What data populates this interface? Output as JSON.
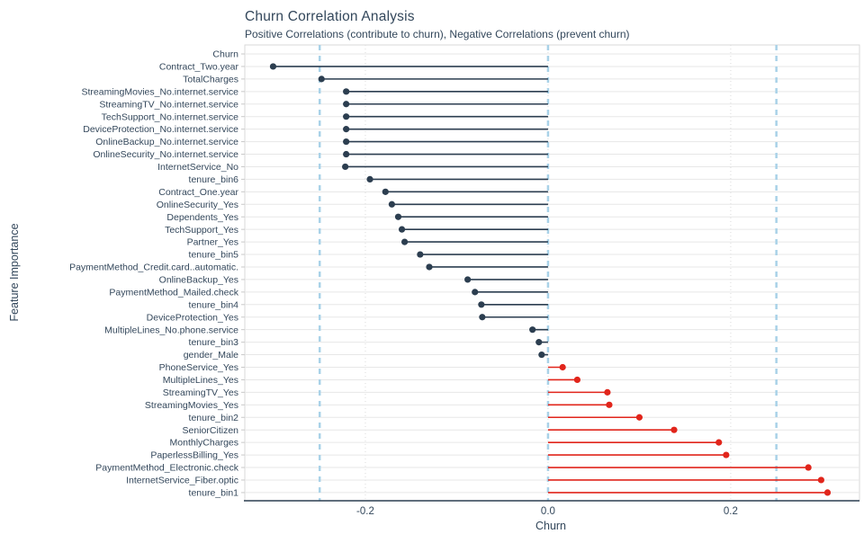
{
  "title": "Churn Correlation Analysis",
  "subtitle": "Positive Correlations (contribute to churn), Negative Correlations (prevent churn)",
  "chart_data": {
    "type": "bar",
    "subtype": "horizontal-lollipop",
    "title": "Churn Correlation Analysis",
    "subtitle": "Positive Correlations (contribute to churn), Negative Correlations (prevent churn)",
    "xlabel": "Churn",
    "ylabel": "Feature Importance",
    "xlim": [
      -0.332,
      0.341
    ],
    "x_ticks": [
      {
        "value": -0.2,
        "label": "-0.2"
      },
      {
        "value": 0.0,
        "label": "0.0"
      },
      {
        "value": 0.2,
        "label": "0.2"
      }
    ],
    "threshold_lines": [
      -0.25,
      0.0,
      0.25
    ],
    "grid": true,
    "legend": "none",
    "colors": {
      "negative": "#2c3e50",
      "positive": "#e1251b",
      "threshold_dash": "#a9d2e8",
      "axis_text": "#33475b",
      "gridline": "#e7e7e7",
      "panel_border": "#d9d9d9"
    },
    "features": [
      {
        "label": "Churn",
        "value": null
      },
      {
        "label": "Contract_Two.year",
        "value": -0.301
      },
      {
        "label": "TotalCharges",
        "value": -0.248
      },
      {
        "label": "StreamingMovies_No.internet.service",
        "value": -0.221
      },
      {
        "label": "StreamingTV_No.internet.service",
        "value": -0.221
      },
      {
        "label": "TechSupport_No.internet.service",
        "value": -0.221
      },
      {
        "label": "DeviceProtection_No.internet.service",
        "value": -0.221
      },
      {
        "label": "OnlineBackup_No.internet.service",
        "value": -0.221
      },
      {
        "label": "OnlineSecurity_No.internet.service",
        "value": -0.221
      },
      {
        "label": "InternetService_No",
        "value": -0.222
      },
      {
        "label": "tenure_bin6",
        "value": -0.195
      },
      {
        "label": "Contract_One.year",
        "value": -0.178
      },
      {
        "label": "OnlineSecurity_Yes",
        "value": -0.171
      },
      {
        "label": "Dependents_Yes",
        "value": -0.164
      },
      {
        "label": "TechSupport_Yes",
        "value": -0.16
      },
      {
        "label": "Partner_Yes",
        "value": -0.157
      },
      {
        "label": "tenure_bin5",
        "value": -0.14
      },
      {
        "label": "PaymentMethod_Credit.card..automatic.",
        "value": -0.13
      },
      {
        "label": "OnlineBackup_Yes",
        "value": -0.088
      },
      {
        "label": "PaymentMethod_Mailed.check",
        "value": -0.08
      },
      {
        "label": "tenure_bin4",
        "value": -0.073
      },
      {
        "label": "DeviceProtection_Yes",
        "value": -0.072
      },
      {
        "label": "MultipleLines_No.phone.service",
        "value": -0.017
      },
      {
        "label": "tenure_bin3",
        "value": -0.01
      },
      {
        "label": "gender_Male",
        "value": -0.007
      },
      {
        "label": "PhoneService_Yes",
        "value": 0.016
      },
      {
        "label": "MultipleLines_Yes",
        "value": 0.032
      },
      {
        "label": "StreamingTV_Yes",
        "value": 0.065
      },
      {
        "label": "StreamingMovies_Yes",
        "value": 0.067
      },
      {
        "label": "tenure_bin2",
        "value": 0.1
      },
      {
        "label": "SeniorCitizen",
        "value": 0.138
      },
      {
        "label": "MonthlyCharges",
        "value": 0.187
      },
      {
        "label": "PaperlessBilling_Yes",
        "value": 0.195
      },
      {
        "label": "PaymentMethod_Electronic.check",
        "value": 0.285
      },
      {
        "label": "InternetService_Fiber.optic",
        "value": 0.299
      },
      {
        "label": "tenure_bin1",
        "value": 0.306
      }
    ]
  }
}
